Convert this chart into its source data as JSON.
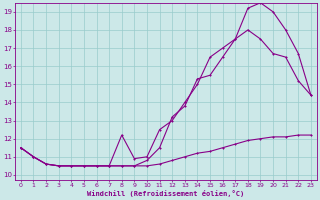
{
  "xlabel": "Windchill (Refroidissement éolien,°C)",
  "bg_color": "#cce8e8",
  "line_color": "#880088",
  "grid_color": "#99cccc",
  "xlim": [
    -0.5,
    23.5
  ],
  "ylim": [
    9.7,
    19.5
  ],
  "yticks": [
    10,
    11,
    12,
    13,
    14,
    15,
    16,
    17,
    18,
    19
  ],
  "xticks": [
    0,
    1,
    2,
    3,
    4,
    5,
    6,
    7,
    8,
    9,
    10,
    11,
    12,
    13,
    14,
    15,
    16,
    17,
    18,
    19,
    20,
    21,
    22,
    23
  ],
  "line1_x": [
    0,
    1,
    2,
    3,
    4,
    5,
    6,
    7,
    8,
    9,
    10,
    11,
    12,
    13,
    14,
    15,
    16,
    17,
    18,
    19,
    20,
    21,
    22,
    23
  ],
  "line1_y": [
    11.5,
    11.0,
    10.6,
    10.5,
    10.5,
    10.5,
    10.5,
    10.5,
    10.5,
    10.5,
    10.5,
    10.6,
    10.8,
    11.0,
    11.2,
    11.3,
    11.5,
    11.7,
    11.9,
    12.0,
    12.1,
    12.1,
    12.2,
    12.2
  ],
  "line2_x": [
    0,
    1,
    2,
    3,
    4,
    5,
    6,
    7,
    8,
    9,
    10,
    11,
    12,
    13,
    14,
    15,
    16,
    17,
    18,
    19,
    20,
    21,
    22,
    23
  ],
  "line2_y": [
    11.5,
    11.0,
    10.6,
    10.5,
    10.5,
    10.5,
    10.5,
    10.5,
    10.5,
    10.5,
    10.8,
    11.5,
    13.2,
    13.8,
    15.3,
    15.5,
    16.5,
    17.5,
    19.2,
    19.5,
    19.0,
    18.0,
    16.7,
    14.4
  ],
  "line3_x": [
    0,
    1,
    2,
    3,
    4,
    5,
    6,
    7,
    8,
    9,
    10,
    11,
    12,
    13,
    14,
    15,
    16,
    17,
    18,
    19,
    20,
    21,
    22,
    23
  ],
  "line3_y": [
    11.5,
    11.0,
    10.6,
    10.5,
    10.5,
    10.5,
    10.5,
    10.5,
    12.2,
    10.9,
    11.0,
    12.5,
    13.0,
    14.0,
    15.0,
    16.5,
    17.0,
    17.5,
    18.0,
    17.5,
    16.7,
    16.5,
    15.2,
    14.4
  ]
}
